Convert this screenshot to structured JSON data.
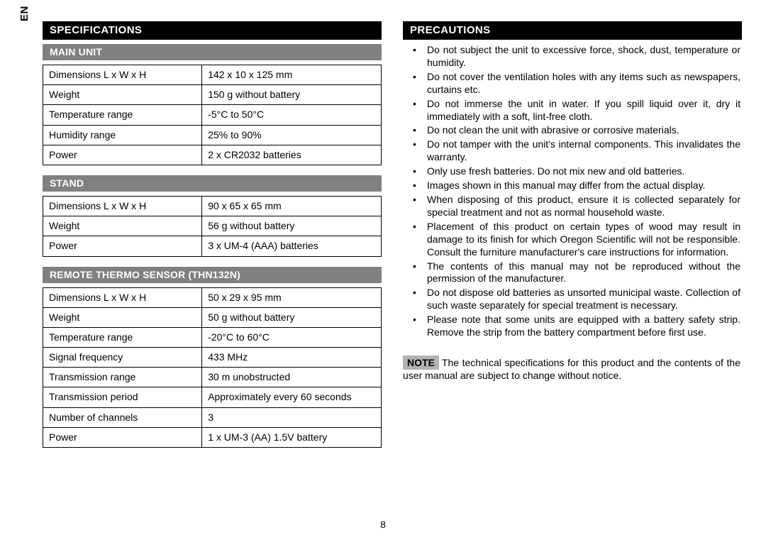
{
  "lang_tag": "EN",
  "page_number": "8",
  "left": {
    "heading": "SPECIFICATIONS",
    "groups": [
      {
        "title": "MAIN UNIT",
        "rows": [
          {
            "label": "Dimensions L x W x H",
            "value": "142 x 10 x 125 mm"
          },
          {
            "label": "Weight",
            "value": "150 g without battery"
          },
          {
            "label": "Temperature range",
            "value": "-5°C to 50°C"
          },
          {
            "label": "Humidity range",
            "value": "25% to 90%"
          },
          {
            "label": "Power",
            "value": "2 x CR2032 batteries"
          }
        ]
      },
      {
        "title": "STAND",
        "rows": [
          {
            "label": "Dimensions L x W x H",
            "value": "90 x 65 x 65 mm"
          },
          {
            "label": "Weight",
            "value": "56 g without battery"
          },
          {
            "label": "Power",
            "value": "3 x UM-4 (AAA) batteries"
          }
        ]
      },
      {
        "title": "REMOTE THERMO SENSOR (THN132N)",
        "rows": [
          {
            "label": "Dimensions L x W x H",
            "value": "50 x 29 x 95 mm"
          },
          {
            "label": "Weight",
            "value": "50 g without battery"
          },
          {
            "label": "Temperature range",
            "value": "-20°C to 60°C"
          },
          {
            "label": "Signal frequency",
            "value": "433 MHz"
          },
          {
            "label": "Transmission range",
            "value": "30 m unobstructed"
          },
          {
            "label": "Transmission period",
            "value": "Approximately every 60 seconds"
          },
          {
            "label": "Number of channels",
            "value": "3"
          },
          {
            "label": "Power",
            "value": "1 x UM-3 (AA) 1.5V battery"
          }
        ]
      }
    ]
  },
  "right": {
    "heading": "PRECAUTIONS",
    "bullets": [
      "Do not subject the unit to excessive force, shock, dust, temperature or humidity.",
      "Do not cover the ventilation holes with any items such as newspapers, curtains etc.",
      "Do not immerse the unit in water. If you spill liquid over it, dry it immediately with a soft, lint-free cloth.",
      "Do not clean the unit with abrasive or corrosive materials.",
      "Do not tamper with the unit's internal components. This invalidates the warranty.",
      "Only use fresh batteries. Do not mix new and old batteries.",
      "Images shown in this manual may differ from the actual display.",
      "When disposing of this product, ensure it is collected separately for special treatment and not as normal household waste.",
      "Placement of this product on certain types of wood may result in damage to its finish for which Oregon Scientific will not be responsible. Consult the furniture manufacturer's care instructions for information.",
      "The contents of this manual may not be reproduced without the permission of the manufacturer.",
      "Do not dispose old batteries as unsorted municipal waste. Collection of such waste separately for special treatment is necessary.",
      "Please note that some units are equipped with a battery safety strip. Remove the strip from the battery compartment before first use."
    ],
    "note_label": "NOTE",
    "note_text": "The technical specifications for this product and the contents of the user manual are subject to change without notice."
  }
}
